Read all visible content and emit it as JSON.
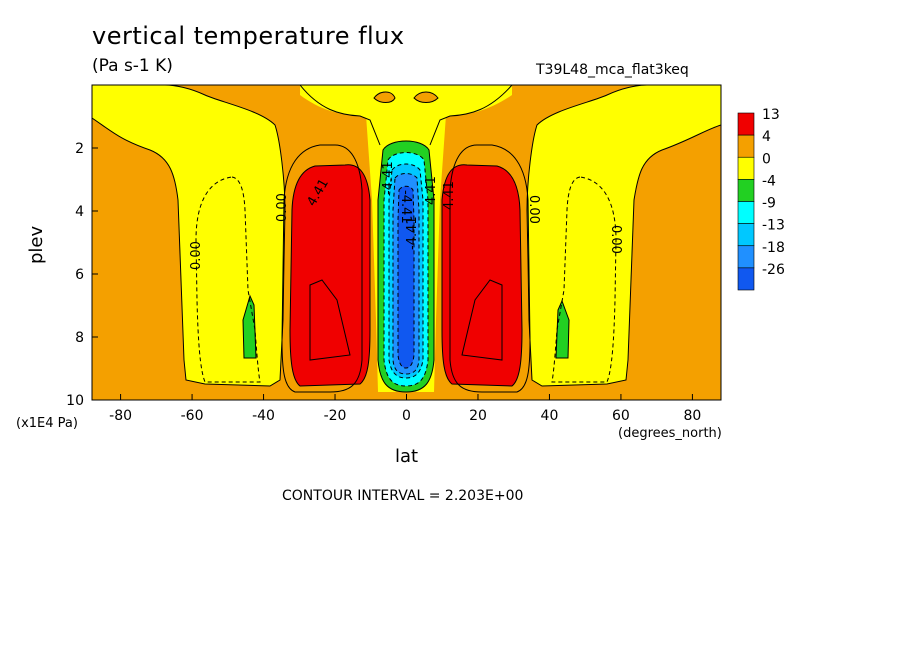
{
  "title": "vertical temperature flux",
  "units": "(Pa s-1 K)",
  "run_name": "T39L48_mca_flat3keq",
  "contour_interval": "CONTOUR INTERVAL = 2.203E+00",
  "colors": {
    "level_13": "#f00000",
    "level_4": "#f4a000",
    "level_0": "#ffff00",
    "level_m4": "#22d022",
    "level_m9": "#00ffff",
    "level_m13": "#00c8ff",
    "level_m18": "#2090ff",
    "level_m26": "#1058f0"
  },
  "chart_data": {
    "type": "heatmap",
    "subtype": "filled-contour",
    "title": "vertical temperature flux",
    "units": "(Pa s-1 K)",
    "xlabel": "lat",
    "ylabel": "plev",
    "x_units": "(degrees_north)",
    "y_units": "(x1E4 Pa)",
    "xlim": [
      -88,
      88
    ],
    "ylim": [
      10,
      0
    ],
    "x_ticks": [
      "-80",
      "-60",
      "-40",
      "-20",
      "0",
      "20",
      "40",
      "60",
      "80"
    ],
    "y_ticks": [
      "2",
      "4",
      "6",
      "8",
      "10"
    ],
    "colorbar_levels": [
      "13",
      "4",
      "0",
      "-4",
      "-9",
      "-13",
      "-18",
      "-26"
    ],
    "contour_labels": [
      "0.00",
      "4.41",
      "-4.41",
      "0.00",
      "4.41",
      "0.00",
      "0.00",
      "-4.41",
      "4.41",
      "-4.41"
    ],
    "regions": [
      {
        "level": "4",
        "description": "background",
        "x": [
          -88,
          88
        ],
        "y": [
          0,
          10
        ]
      },
      {
        "level": "13",
        "x": [
          -30,
          -10
        ],
        "y": [
          2.6,
          9.5
        ]
      },
      {
        "level": "13",
        "x": [
          10,
          30
        ],
        "y": [
          2.6,
          9.5
        ]
      },
      {
        "level": "-26",
        "x": [
          -2.5,
          2.5
        ],
        "y": [
          3.2,
          9.0
        ]
      },
      {
        "level": "-4",
        "x": [
          -46,
          -44
        ],
        "y": [
          6.8,
          8.7
        ]
      },
      {
        "level": "-4",
        "x": [
          44,
          46
        ],
        "y": [
          6.8,
          8.7
        ]
      }
    ]
  }
}
